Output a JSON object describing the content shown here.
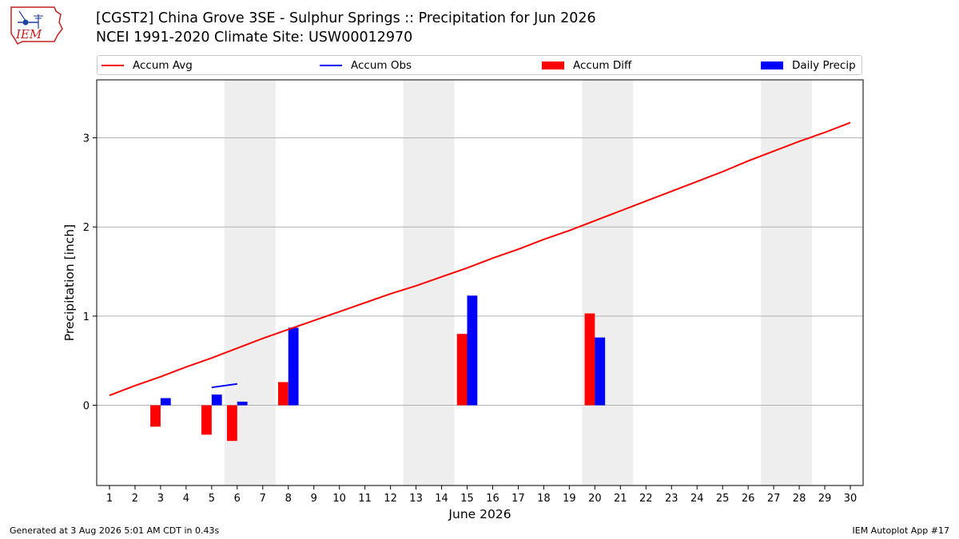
{
  "title": {
    "line1": "[CGST2] China Grove 3SE - Sulphur Springs :: Precipitation for Jun 2026",
    "line2": "NCEI 1991-2020 Climate Site: USW00012970"
  },
  "logo": {
    "text": "IEM"
  },
  "legend": {
    "items": [
      {
        "label": "Accum Avg",
        "type": "line",
        "color": "#ff0000"
      },
      {
        "label": "Accum Obs",
        "type": "line",
        "color": "#0000ff"
      },
      {
        "label": "Accum Diff",
        "type": "box",
        "color": "#ff0000"
      },
      {
        "label": "Daily Precip",
        "type": "box",
        "color": "#0000ff"
      }
    ]
  },
  "footer": {
    "left": "Generated at 3 Aug 2026 5:01 AM CDT in 0.43s",
    "right": "IEM Autoplot App #17"
  },
  "chart_data": {
    "type": "bar",
    "xlabel": "June 2026",
    "ylabel": "Precipitation [inch]",
    "xlim": [
      0.5,
      30.5
    ],
    "ylim": [
      -0.9,
      3.65
    ],
    "yticks": [
      0,
      1,
      2,
      3
    ],
    "grid": "horizontal",
    "legend_position": "top",
    "days": [
      1,
      2,
      3,
      4,
      5,
      6,
      7,
      8,
      9,
      10,
      11,
      12,
      13,
      14,
      15,
      16,
      17,
      18,
      19,
      20,
      21,
      22,
      23,
      24,
      25,
      26,
      27,
      28,
      29,
      30
    ],
    "weekend_shading": [
      [
        6,
        7
      ],
      [
        13,
        14
      ],
      [
        20,
        21
      ],
      [
        27,
        28
      ]
    ],
    "series": [
      {
        "name": "Accum Avg",
        "kind": "line",
        "color": "#ff0000",
        "x": [
          1,
          2,
          3,
          4,
          5,
          6,
          7,
          8,
          9,
          10,
          11,
          12,
          13,
          14,
          15,
          16,
          17,
          18,
          19,
          20,
          21,
          22,
          23,
          24,
          25,
          26,
          27,
          28,
          29,
          30
        ],
        "values": [
          0.11,
          0.22,
          0.32,
          0.43,
          0.53,
          0.64,
          0.75,
          0.85,
          0.95,
          1.05,
          1.15,
          1.25,
          1.34,
          1.44,
          1.54,
          1.65,
          1.75,
          1.86,
          1.96,
          2.07,
          2.18,
          2.29,
          2.4,
          2.51,
          2.62,
          2.74,
          2.85,
          2.96,
          3.06,
          3.17
        ]
      },
      {
        "name": "Accum Obs",
        "kind": "line",
        "color": "#0000ff",
        "x": [
          5,
          6
        ],
        "values": [
          0.2,
          0.24
        ]
      },
      {
        "name": "Accum Diff",
        "kind": "bar",
        "color": "#ff0000",
        "x": [
          3,
          5,
          6,
          8,
          15,
          20
        ],
        "values": [
          -0.24,
          -0.33,
          -0.4,
          0.26,
          0.8,
          1.03
        ]
      },
      {
        "name": "Daily Precip",
        "kind": "bar",
        "color": "#0000ff",
        "x": [
          3,
          5,
          6,
          8,
          15,
          20
        ],
        "values": [
          0.08,
          0.12,
          0.04,
          0.87,
          1.23,
          0.76
        ]
      }
    ]
  }
}
